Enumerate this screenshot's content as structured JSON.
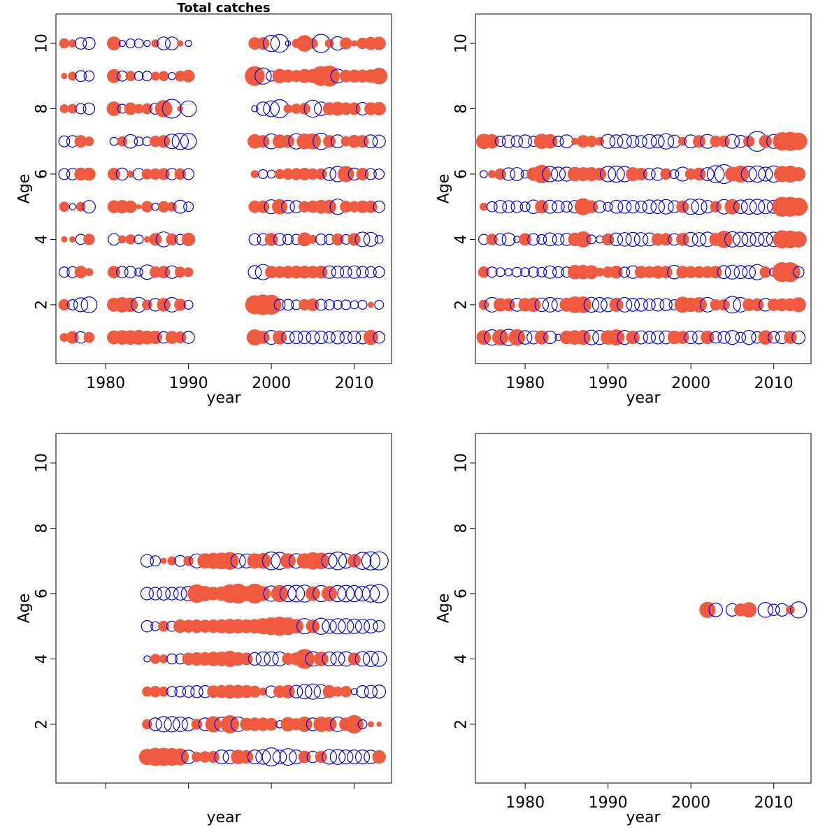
{
  "colors": {
    "positive": "#f05a3f",
    "negative": "#0000ee",
    "axis": "#000000"
  },
  "chart_data": [
    {
      "type": "scatter",
      "subtype": "bubble-residuals",
      "title": "Total catches",
      "xlabel": "year",
      "ylabel": "Age",
      "xlim": [
        1974,
        2014.5
      ],
      "ylim": [
        0.2,
        10.9
      ],
      "xticks": [
        1980,
        1990,
        2000,
        2010
      ],
      "yticks": [
        2,
        4,
        6,
        8,
        10
      ],
      "show_x_tick_labels": true,
      "show_x_title": true,
      "show_y_title": true,
      "ages": [
        1,
        2,
        3,
        4,
        5,
        6,
        7,
        8,
        9,
        10
      ],
      "years": [
        1975,
        1976,
        1977,
        1978,
        1981,
        1982,
        1983,
        1984,
        1985,
        1986,
        1987,
        1988,
        1989,
        1990,
        1998,
        1999,
        2000,
        2001,
        2002,
        2003,
        2004,
        2005,
        2006,
        2007,
        2008,
        2009,
        2010,
        2011,
        2012,
        2013
      ],
      "residuals": [
        [
          0.6,
          1.2,
          -1.0,
          0.9,
          1.5,
          1.6,
          1.6,
          1.7,
          1.5,
          1.4,
          -1.0,
          1.3,
          1.1,
          -1.1,
          2.0,
          1.3,
          -1.5,
          1.5,
          -1.2,
          -1.2,
          -1.2,
          -1.3,
          -1.2,
          -1.0,
          -1.3,
          -1.1,
          -1.2,
          -1.3,
          1.7,
          -1.0
        ],
        [
          1.0,
          -0.8,
          -1.5,
          -1.9,
          1.5,
          1.8,
          1.6,
          -1.7,
          0.8,
          -1.2,
          1.4,
          -1.6,
          1.1,
          -0.6,
          2.8,
          3.2,
          3.0,
          -0.9,
          -0.9,
          -0.7,
          1.0,
          1.2,
          -0.9,
          -0.8,
          -0.6,
          -0.7,
          -0.5,
          -0.6,
          0.3,
          -0.6
        ],
        [
          -0.8,
          -0.9,
          1.2,
          0.5,
          1.2,
          -1.0,
          -1.0,
          -0.5,
          -1.6,
          1.0,
          1.2,
          -1.2,
          0.9,
          0.7,
          -1.3,
          -1.8,
          1.2,
          1.1,
          1.2,
          1.3,
          1.3,
          1.2,
          1.3,
          -1.2,
          -1.1,
          -1.0,
          -1.2,
          -1.0,
          -0.9,
          -0.9
        ],
        [
          0.3,
          0.3,
          -0.8,
          1.0,
          -1.0,
          0.5,
          0.8,
          -0.6,
          0.3,
          1.2,
          -1.7,
          1.1,
          -0.8,
          1.4,
          -1.0,
          -1.0,
          1.3,
          -1.1,
          -0.8,
          -0.8,
          1.5,
          0.6,
          -0.9,
          -0.8,
          1.1,
          -0.7,
          1.2,
          -1.6,
          -1.5,
          -0.5
        ],
        [
          0.8,
          -0.3,
          0.7,
          -1.2,
          1.3,
          1.4,
          1.2,
          0.2,
          1.0,
          -0.4,
          1.0,
          0.7,
          -1.3,
          -0.7,
          1.2,
          1.2,
          -1.5,
          1.8,
          -1.3,
          -1.1,
          1.0,
          1.2,
          1.5,
          1.5,
          -1.8,
          1.1,
          1.0,
          1.2,
          1.2,
          -1.0
        ],
        [
          -0.9,
          -1.0,
          1.3,
          1.3,
          1.2,
          -1.1,
          0.4,
          -1.0,
          0.9,
          1.0,
          1.1,
          -1.0,
          1.0,
          -0.9,
          0.5,
          -0.6,
          -0.5,
          0.8,
          1.0,
          1.1,
          1.2,
          1.0,
          1.0,
          -1.3,
          -1.8,
          2.0,
          -1.1,
          1.2,
          -0.9,
          -0.8
        ],
        [
          -0.9,
          -1.0,
          1.2,
          0.7,
          -0.5,
          0.8,
          -1.4,
          -0.6,
          -0.6,
          1.0,
          1.2,
          -1.6,
          -2.0,
          -1.9,
          1.6,
          1.2,
          -1.7,
          1.5,
          1.3,
          -1.8,
          1.9,
          2.0,
          -2.0,
          1.2,
          -1.3,
          0.8,
          1.3,
          1.2,
          -1.3,
          -1.2
        ],
        [
          0.6,
          0.7,
          -0.8,
          -1.0,
          1.6,
          -0.6,
          1.2,
          0.7,
          0.9,
          -0.9,
          2.3,
          -2.7,
          0.3,
          -1.9,
          -0.3,
          -1.4,
          -1.9,
          -2.5,
          0.6,
          0.8,
          1.0,
          -2.2,
          -1.4,
          1.3,
          1.5,
          1.2,
          1.2,
          -1.2,
          1.3,
          1.4
        ],
        [
          0.3,
          0.6,
          -0.9,
          -0.8,
          1.5,
          -0.8,
          0.8,
          -0.6,
          -0.7,
          0.6,
          0.8,
          -0.4,
          0.9,
          1.2,
          3.0,
          -2.0,
          -0.8,
          1.6,
          1.3,
          1.1,
          1.5,
          1.5,
          3.0,
          3.3,
          -1.5,
          1.2,
          1.3,
          1.3,
          1.4,
          2.1
        ],
        [
          0.8,
          0.5,
          -1.0,
          -1.1,
          1.5,
          -0.3,
          -0.6,
          -0.6,
          -0.3,
          0.5,
          -1.3,
          -1.3,
          0.3,
          -0.3,
          1.2,
          1.2,
          -2.0,
          -2.4,
          -0.2,
          0.6,
          2.1,
          0.8,
          -2.5,
          0.6,
          -1.4,
          1.1,
          0.3,
          1.0,
          1.3,
          1.4
        ]
      ]
    },
    {
      "type": "scatter",
      "subtype": "bubble-residuals",
      "title": "",
      "xlabel": "year",
      "ylabel": "Age",
      "xlim": [
        1974,
        2014.5
      ],
      "ylim": [
        0.2,
        10.9
      ],
      "xticks": [
        1980,
        1990,
        2000,
        2010
      ],
      "yticks": [
        2,
        4,
        6,
        8,
        10
      ],
      "show_x_tick_labels": true,
      "show_x_title": true,
      "show_y_title": true,
      "ages": [
        1,
        2,
        3,
        4,
        5,
        6,
        7
      ],
      "years": [
        1975,
        1976,
        1977,
        1978,
        1979,
        1980,
        1981,
        1982,
        1983,
        1984,
        1985,
        1986,
        1987,
        1988,
        1989,
        1990,
        1991,
        1992,
        1993,
        1994,
        1995,
        1996,
        1997,
        1998,
        1999,
        2000,
        2001,
        2002,
        2003,
        2004,
        2005,
        2006,
        2007,
        2008,
        2009,
        2010,
        2011,
        2012,
        2013
      ],
      "residuals": [
        [
          1.6,
          -1.8,
          2.0,
          -2.0,
          2.1,
          -1.4,
          -1.3,
          1.5,
          -1.2,
          -0.3,
          1.4,
          1.6,
          1.7,
          -1.6,
          -1.5,
          1.6,
          2.0,
          -1.5,
          1.4,
          -1.3,
          -1.1,
          -1.3,
          -1.3,
          1.4,
          1.3,
          -1.2,
          -1.3,
          1.4,
          -1.0,
          -1.1,
          -1.5,
          -0.8,
          -1.5,
          -1.0,
          1.6,
          -1.0,
          -1.2,
          1.3,
          -1.3
        ],
        [
          0.8,
          -1.6,
          1.4,
          1.3,
          -1.3,
          1.4,
          1.6,
          -1.4,
          -1.6,
          -1.3,
          1.5,
          2.1,
          2.1,
          -1.7,
          -1.6,
          -1.5,
          1.5,
          -1.6,
          -1.3,
          -1.3,
          -1.0,
          -1.2,
          -1.1,
          -0.8,
          2.0,
          1.6,
          1.8,
          -1.6,
          1.0,
          1.0,
          -2.1,
          -1.6,
          1.2,
          1.3,
          -1.2,
          1.2,
          1.3,
          1.3,
          1.7
        ],
        [
          1.0,
          -0.8,
          -0.6,
          -0.4,
          -0.7,
          -0.6,
          -0.8,
          -0.7,
          -1.2,
          -0.9,
          -0.8,
          1.6,
          1.6,
          1.5,
          0.6,
          1.0,
          1.3,
          -0.8,
          -1.2,
          1.2,
          1.1,
          1.3,
          1.2,
          -1.4,
          1.2,
          1.1,
          1.1,
          1.1,
          1.2,
          -1.3,
          -1.5,
          -1.3,
          -1.3,
          -1.8,
          1.0,
          -0.5,
          3.0,
          3.0,
          -0.9
        ],
        [
          -0.8,
          1.0,
          -1.0,
          -1.3,
          -0.3,
          1.2,
          -1.0,
          -0.7,
          -1.3,
          -1.0,
          -1.1,
          1.4,
          2.0,
          -0.6,
          -0.4,
          1.1,
          -1.2,
          -1.4,
          -1.5,
          -1.4,
          -1.3,
          1.2,
          1.2,
          -1.0,
          1.3,
          -1.5,
          -1.4,
          -1.6,
          1.3,
          2.3,
          -1.8,
          -1.6,
          -1.5,
          -1.5,
          -1.5,
          -1.6,
          2.5,
          2.4,
          2.0
        ],
        [
          0.5,
          -0.8,
          -1.2,
          -1.1,
          -1.0,
          -0.7,
          -1.4,
          1.4,
          -1.3,
          -1.1,
          -0.9,
          -1.2,
          2.2,
          1.3,
          -1.1,
          -0.6,
          -1.3,
          -1.3,
          -1.2,
          -1.0,
          -1.4,
          -1.4,
          -1.6,
          -1.1,
          1.2,
          -1.8,
          -1.8,
          -1.2,
          1.0,
          -1.6,
          1.8,
          -1.4,
          -1.7,
          -1.7,
          -1.5,
          -1.3,
          3.0,
          3.0,
          2.5
        ],
        [
          -0.4,
          0.5,
          1.0,
          -1.2,
          -1.3,
          -0.5,
          1.4,
          2.6,
          -1.8,
          -1.5,
          -1.5,
          1.6,
          1.5,
          1.5,
          1.3,
          -1.8,
          -2.0,
          -1.8,
          1.5,
          1.2,
          -1.0,
          -1.2,
          1.0,
          -0.6,
          -1.5,
          1.0,
          1.3,
          -1.3,
          -2.2,
          -2.7,
          1.6,
          2.2,
          -1.8,
          -2.0,
          -1.5,
          -2.0,
          2.0,
          2.2,
          1.5
        ],
        [
          1.8,
          1.6,
          -0.8,
          -1.2,
          -1.0,
          -1.3,
          -0.8,
          1.8,
          1.6,
          -0.8,
          -1.3,
          0.4,
          1.2,
          1.0,
          0.6,
          -1.5,
          -1.3,
          -1.5,
          -1.1,
          -1.0,
          -1.5,
          -1.3,
          -1.8,
          -1.2,
          0.6,
          -1.3,
          1.2,
          -1.5,
          1.0,
          1.0,
          -1.5,
          -1.1,
          1.0,
          -3.0,
          1.3,
          -1.5,
          2.6,
          2.8,
          2.3
        ]
      ]
    },
    {
      "type": "scatter",
      "subtype": "bubble-residuals",
      "title": "",
      "xlabel": "year",
      "ylabel": "Age",
      "xlim": [
        1974,
        2014.5
      ],
      "ylim": [
        0.2,
        10.9
      ],
      "xticks": [
        1980,
        1990,
        2000,
        2010
      ],
      "yticks": [
        2,
        4,
        6,
        8,
        10
      ],
      "show_x_tick_labels": false,
      "show_x_title": true,
      "show_y_title": true,
      "ages": [
        1,
        2,
        3,
        4,
        5,
        6,
        7
      ],
      "years": [
        1985,
        1986,
        1987,
        1988,
        1989,
        1990,
        1991,
        1992,
        1993,
        1994,
        1995,
        1996,
        1997,
        1998,
        1999,
        2000,
        2001,
        2002,
        2003,
        2004,
        2005,
        2006,
        2007,
        2008,
        2009,
        2010,
        2011,
        2012,
        2013
      ],
      "residuals": [
        [
          2.0,
          2.5,
          2.5,
          2.4,
          2.2,
          -1.4,
          0.8,
          1.0,
          1.1,
          -1.5,
          -1.4,
          1.6,
          1.4,
          -1.5,
          -1.6,
          -2.5,
          -1.4,
          -2.1,
          -1.5,
          1.2,
          -1.0,
          1.1,
          -1.6,
          -1.7,
          -1.5,
          -1.5,
          -1.5,
          -1.4,
          1.4
        ],
        [
          0.8,
          -1.2,
          -1.8,
          -1.8,
          -1.6,
          -1.3,
          0.9,
          -1.2,
          2.0,
          -1.5,
          2.5,
          -1.6,
          1.3,
          1.4,
          1.4,
          1.2,
          -0.4,
          1.6,
          1.1,
          1.8,
          -1.2,
          1.8,
          1.6,
          -1.6,
          1.4,
          2.6,
          -0.6,
          0.3,
          0.2
        ],
        [
          0.8,
          1.0,
          0.8,
          -0.8,
          -0.9,
          -1.0,
          -1.1,
          -1.1,
          1.2,
          1.3,
          1.5,
          1.4,
          1.3,
          1.1,
          0.5,
          -1.0,
          1.2,
          1.4,
          -1.2,
          -1.6,
          -1.8,
          -1.5,
          1.3,
          0.8,
          1.0,
          -0.3,
          -1.1,
          -1.2,
          -1.3
        ],
        [
          -0.3,
          0.8,
          0.6,
          -0.8,
          -0.8,
          1.2,
          1.4,
          1.4,
          1.6,
          1.6,
          2.0,
          1.4,
          1.2,
          -1.2,
          -1.5,
          -1.5,
          -1.5,
          1.1,
          1.3,
          3.0,
          -1.6,
          1.6,
          -1.5,
          -1.5,
          -1.6,
          1.2,
          -1.6,
          -1.8,
          -1.7
        ],
        [
          -1.0,
          -0.6,
          0.9,
          -0.8,
          1.4,
          1.3,
          1.4,
          1.3,
          1.4,
          1.5,
          1.7,
          1.6,
          1.5,
          1.6,
          2.0,
          2.4,
          2.8,
          2.4,
          1.6,
          -1.8,
          1.4,
          -2.0,
          -1.5,
          -1.8,
          -1.8,
          -1.6,
          -1.5,
          -1.4,
          -1.0
        ],
        [
          -1.2,
          -1.2,
          -1.3,
          -1.2,
          -1.3,
          -1.6,
          2.6,
          1.8,
          1.4,
          1.6,
          2.6,
          3.0,
          1.7,
          3.0,
          1.7,
          -1.8,
          2.2,
          -2.0,
          -2.1,
          -2.2,
          1.6,
          -2.0,
          1.8,
          -2.0,
          -2.1,
          -2.0,
          -1.7,
          -2.2,
          -2.5
        ],
        [
          -1.2,
          -0.8,
          0.3,
          0.6,
          -0.9,
          0.8,
          -1.5,
          1.8,
          2.0,
          2.1,
          2.4,
          -1.6,
          -1.5,
          1.8,
          1.9,
          -2.4,
          -2.2,
          1.8,
          -1.6,
          1.8,
          2.3,
          2.1,
          -1.8,
          -2.4,
          -1.6,
          1.4,
          -2.2,
          -2.5,
          -2.5
        ]
      ]
    },
    {
      "type": "scatter",
      "subtype": "bubble-residuals",
      "title": "",
      "xlabel": "year",
      "ylabel": "Age",
      "xlim": [
        1974,
        2014.5
      ],
      "ylim": [
        0.2,
        10.9
      ],
      "xticks": [
        1980,
        1990,
        2000,
        2010
      ],
      "yticks": [
        2,
        4,
        6,
        8,
        10
      ],
      "show_x_tick_labels": true,
      "show_x_title": true,
      "show_y_title": true,
      "ages": [
        5.5
      ],
      "years": [
        2002,
        2003,
        2005,
        2006,
        2007,
        2009,
        2010,
        2011,
        2012,
        2013
      ],
      "residuals": [
        [
          2.0,
          -1.4,
          -1.2,
          1.3,
          1.8,
          -1.7,
          -1.0,
          -1.2,
          0.6,
          -2.0
        ]
      ]
    }
  ]
}
